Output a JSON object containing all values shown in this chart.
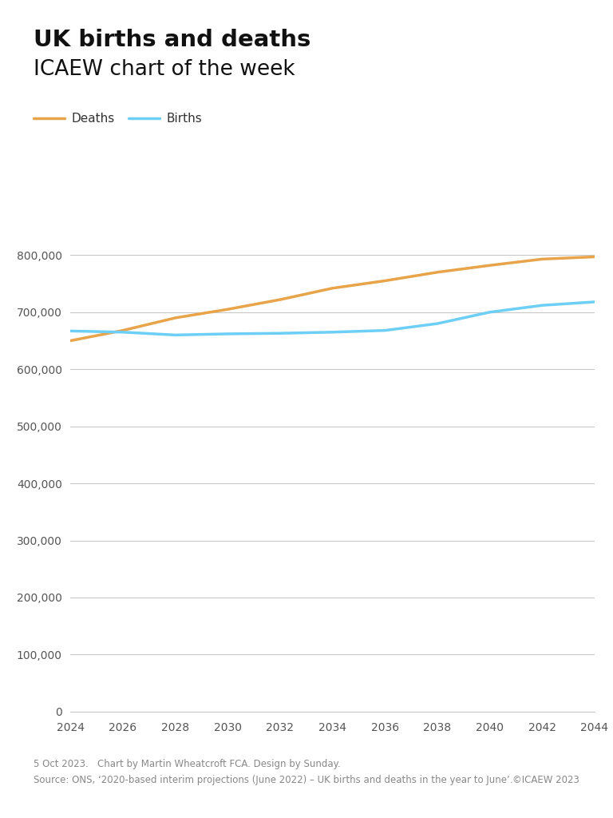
{
  "title_bold": "UK births and deaths",
  "title_sub": "ICAEW chart of the week",
  "years": [
    2024,
    2026,
    2028,
    2030,
    2032,
    2034,
    2036,
    2038,
    2040,
    2042,
    2044
  ],
  "births": [
    667000,
    665000,
    660000,
    662000,
    663000,
    665000,
    668000,
    680000,
    700000,
    712000,
    718000
  ],
  "deaths": [
    650000,
    668000,
    690000,
    705000,
    722000,
    742000,
    755000,
    770000,
    782000,
    793000,
    797000
  ],
  "births_color": "#6dcff6",
  "deaths_color": "#e8a44a",
  "line_width": 2.5,
  "ylim": [
    0,
    860000
  ],
  "yticks": [
    0,
    100000,
    200000,
    300000,
    400000,
    500000,
    600000,
    700000,
    800000
  ],
  "xticks": [
    2024,
    2026,
    2028,
    2030,
    2032,
    2034,
    2036,
    2038,
    2040,
    2042,
    2044
  ],
  "grid_color": "#c8c8c8",
  "background_color": "#ffffff",
  "legend_deaths": "Deaths",
  "legend_births": "Births",
  "footer_line1": "5 Oct 2023.   Chart by Martin Wheatcroft FCA. Design by Sunday.",
  "footer_line2": "Source: ONS, ‘2020-based interim projections (June 2022) – UK births and deaths in the year to June’.",
  "footer_copyright": "©ICAEW 2023",
  "footer_color": "#888888",
  "title_bold_size": 21,
  "title_sub_size": 19,
  "tick_label_color": "#555555",
  "tick_label_size": 10
}
